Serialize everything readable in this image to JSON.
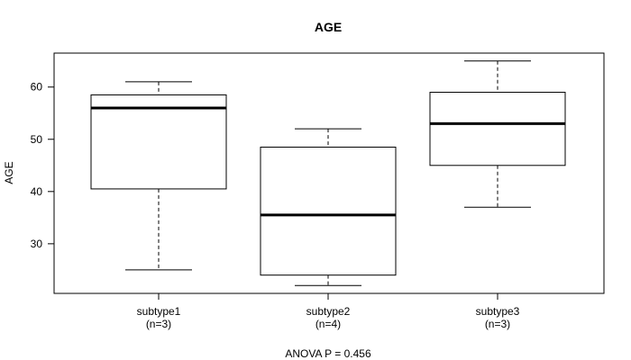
{
  "chart_data": {
    "type": "boxplot",
    "title": "AGE",
    "ylabel": "AGE",
    "xlabel": "",
    "footer": "ANOVA P = 0.456",
    "ylim": [
      20.5,
      66.5
    ],
    "yticks": [
      30,
      40,
      50,
      60
    ],
    "grid": false,
    "categories": [
      {
        "name": "subtype1",
        "n_label": "(n=3)"
      },
      {
        "name": "subtype2",
        "n_label": "(n=4)"
      },
      {
        "name": "subtype3",
        "n_label": "(n=3)"
      }
    ],
    "boxes": [
      {
        "min": 25,
        "q1": 40.5,
        "median": 56,
        "q3": 58.5,
        "max": 61
      },
      {
        "min": 22,
        "q1": 24,
        "median": 35.5,
        "q3": 48.5,
        "max": 52
      },
      {
        "min": 37,
        "q1": 45,
        "median": 53,
        "q3": 59,
        "max": 65
      }
    ]
  }
}
